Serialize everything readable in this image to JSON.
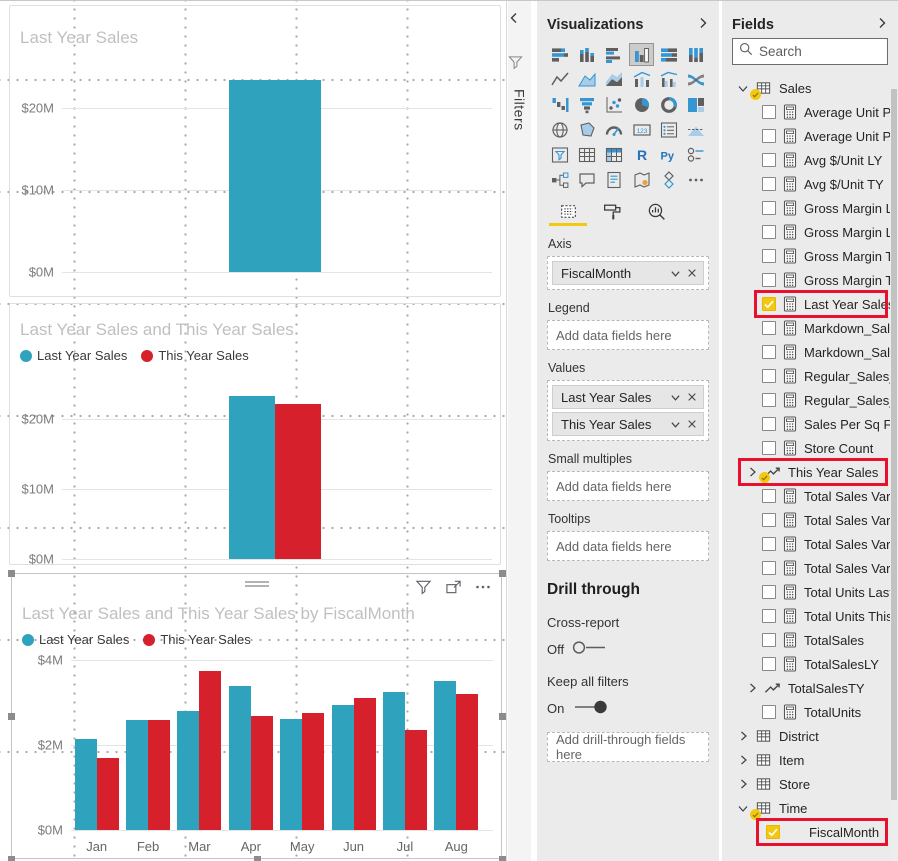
{
  "colors": {
    "teal": "#2FA3BE",
    "red": "#D6212C",
    "accent_yellow": "#F2C811",
    "highlight_red": "#E8112D"
  },
  "filters_rail": {
    "label": "Filters",
    "collapse_icon": "chevron-left-icon",
    "funnel_icon": "filter-icon"
  },
  "visual_header": {
    "icons": [
      "filter-icon",
      "focus-mode-icon",
      "more-options-icon"
    ]
  },
  "visualizations": {
    "title": "Visualizations",
    "expand_icon": "chevron-right-icon",
    "selected_gallery_index": 3,
    "gallery": [
      "stacked-bar-chart",
      "stacked-column-chart",
      "clustered-bar-chart",
      "clustered-column-chart",
      "100-stacked-bar-chart",
      "100-stacked-column-chart",
      "line-chart",
      "area-chart",
      "stacked-area-chart",
      "line-and-stacked-column-chart",
      "line-and-clustered-column-chart",
      "ribbon-chart",
      "waterfall-chart",
      "funnel-chart",
      "scatter-chart",
      "pie-chart",
      "donut-chart",
      "treemap",
      "map",
      "filled-map",
      "gauge",
      "card",
      "multi-row-card",
      "kpi",
      "slicer",
      "table",
      "matrix",
      "r-script-visual",
      "python-visual",
      "key-influencers",
      "decomposition-tree",
      "q-and-a",
      "smart-narrative",
      "arcgis-map",
      "metrics",
      "more-options"
    ],
    "tabs": [
      {
        "name": "fields-tab",
        "selected": true
      },
      {
        "name": "format-tab",
        "selected": false
      },
      {
        "name": "analytics-tab",
        "selected": false
      }
    ],
    "wells": [
      {
        "label": "Axis",
        "pills": [
          "FiscalMonth"
        ]
      },
      {
        "label": "Legend",
        "placeholder": "Add data fields here"
      },
      {
        "label": "Values",
        "pills": [
          "Last Year Sales",
          "This Year Sales"
        ]
      },
      {
        "label": "Small multiples",
        "placeholder": "Add data fields here"
      },
      {
        "label": "Tooltips",
        "placeholder": "Add data fields here"
      }
    ],
    "drill_through": {
      "heading": "Drill through",
      "cross_report_label": "Cross-report",
      "cross_report_state": "Off",
      "keep_filters_label": "Keep all filters",
      "keep_filters_state": "On",
      "placeholder": "Add drill-through fields here"
    }
  },
  "fields_pane": {
    "title": "Fields",
    "expand_icon": "chevron-right-icon",
    "search_placeholder": "Search",
    "tree": [
      {
        "label": "Sales",
        "kind": "table",
        "expanded": true,
        "badge": true
      },
      {
        "label": "Average Unit Pri...",
        "kind": "measure"
      },
      {
        "label": "Average Unit Pri...",
        "kind": "measure"
      },
      {
        "label": "Avg $/Unit LY",
        "kind": "measure"
      },
      {
        "label": "Avg $/Unit TY",
        "kind": "measure"
      },
      {
        "label": "Gross Margin La...",
        "kind": "measure"
      },
      {
        "label": "Gross Margin La...",
        "kind": "measure"
      },
      {
        "label": "Gross Margin T...",
        "kind": "measure"
      },
      {
        "label": "Gross Margin T...",
        "kind": "measure"
      },
      {
        "label": "Last Year Sales",
        "kind": "measure",
        "checked": true,
        "highlighted": true
      },
      {
        "label": "Markdown_Sale...",
        "kind": "measure"
      },
      {
        "label": "Markdown_Sale...",
        "kind": "measure"
      },
      {
        "label": "Regular_Sales_D...",
        "kind": "measure"
      },
      {
        "label": "Regular_Sales_U...",
        "kind": "measure"
      },
      {
        "label": "Sales Per Sq Ft",
        "kind": "measure"
      },
      {
        "label": "Store Count",
        "kind": "measure"
      },
      {
        "label": "This Year Sales",
        "kind": "measure-group",
        "badge": true,
        "highlighted": true
      },
      {
        "label": "Total Sales Var",
        "kind": "measure"
      },
      {
        "label": "Total Sales Var %",
        "kind": "measure"
      },
      {
        "label": "Total Sales Varia...",
        "kind": "measure"
      },
      {
        "label": "Total Sales Varia...",
        "kind": "measure"
      },
      {
        "label": "Total Units Last ...",
        "kind": "measure"
      },
      {
        "label": "Total Units This ...",
        "kind": "measure"
      },
      {
        "label": "TotalSales",
        "kind": "measure"
      },
      {
        "label": "TotalSalesLY",
        "kind": "measure"
      },
      {
        "label": "TotalSalesTY",
        "kind": "measure-group"
      },
      {
        "label": "TotalUnits",
        "kind": "measure"
      },
      {
        "label": "District",
        "kind": "table"
      },
      {
        "label": "Item",
        "kind": "table"
      },
      {
        "label": "Store",
        "kind": "table"
      },
      {
        "label": "Time",
        "kind": "table",
        "expanded": true,
        "badge": true
      },
      {
        "label": "FiscalMonth",
        "kind": "column",
        "checked": true,
        "highlighted": true
      }
    ]
  },
  "chart_data": [
    {
      "type": "bar",
      "title": "Last Year Sales",
      "categories": [
        ""
      ],
      "series": [
        {
          "name": "Last Year Sales",
          "color": "#2FA3BE",
          "values": [
            23.4
          ]
        }
      ],
      "yticks": [
        {
          "v": 0,
          "label": "$0M"
        },
        {
          "v": 10,
          "label": "$10M"
        },
        {
          "v": 20,
          "label": "$20M"
        }
      ],
      "ylim": [
        0,
        25.5
      ],
      "legend": false,
      "grid": true
    },
    {
      "type": "bar",
      "title": "Last Year Sales and This Year Sales",
      "categories": [
        ""
      ],
      "series": [
        {
          "name": "Last Year Sales",
          "color": "#2FA3BE",
          "values": [
            23.3
          ]
        },
        {
          "name": "This Year Sales",
          "color": "#D6212C",
          "values": [
            22.2
          ]
        }
      ],
      "yticks": [
        {
          "v": 0,
          "label": "$0M"
        },
        {
          "v": 10,
          "label": "$10M"
        },
        {
          "v": 20,
          "label": "$20M"
        }
      ],
      "ylim": [
        0,
        25
      ],
      "legend": true,
      "grid": true
    },
    {
      "type": "bar",
      "title": "Last Year Sales and This Year Sales by FiscalMonth",
      "categories": [
        "Jan",
        "Feb",
        "Mar",
        "Apr",
        "May",
        "Jun",
        "Jul",
        "Aug"
      ],
      "series": [
        {
          "name": "Last Year Sales",
          "color": "#2FA3BE",
          "values": [
            2.15,
            2.6,
            2.8,
            3.4,
            2.62,
            2.93,
            3.24,
            3.5
          ]
        },
        {
          "name": "This Year Sales",
          "color": "#D6212C",
          "values": [
            1.7,
            2.6,
            3.75,
            2.68,
            2.76,
            3.1,
            2.35,
            3.2
          ]
        }
      ],
      "yticks": [
        {
          "v": 0,
          "label": "$0M"
        },
        {
          "v": 2,
          "label": "$2M"
        },
        {
          "v": 4,
          "label": "$4M"
        }
      ],
      "ylim": [
        0,
        4.3
      ],
      "legend": true,
      "grid": true,
      "xlabel": "FiscalMonth"
    }
  ]
}
